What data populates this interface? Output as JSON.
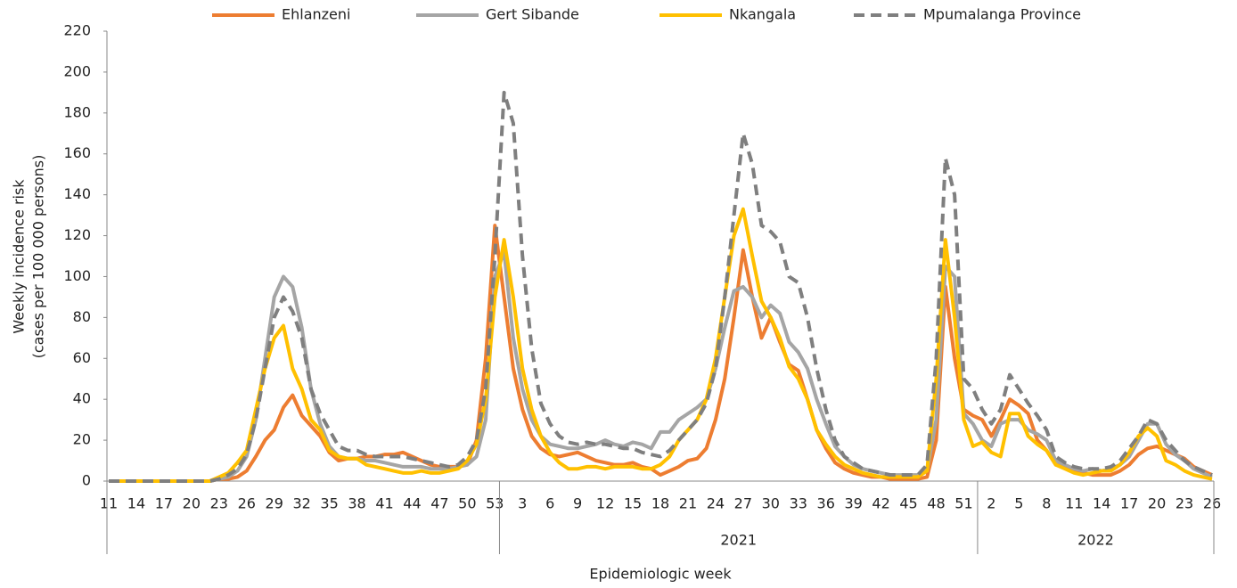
{
  "chart_data": {
    "type": "line",
    "y_title": [
      "Weekly incidence risk",
      "(cases per 100 000 persons)"
    ],
    "x_title": "Epidemiologic week",
    "ylim": [
      0,
      220
    ],
    "yticks": [
      0,
      20,
      40,
      60,
      80,
      100,
      120,
      140,
      160,
      180,
      200,
      220
    ],
    "legend": "top",
    "categories": [
      "11",
      null,
      null,
      "14",
      null,
      null,
      "17",
      null,
      null,
      "20",
      null,
      null,
      "23",
      null,
      null,
      "26",
      null,
      null,
      "29",
      null,
      null,
      "32",
      null,
      null,
      "35",
      null,
      null,
      "38",
      null,
      null,
      "41",
      null,
      null,
      "44",
      null,
      null,
      "47",
      null,
      null,
      "50",
      null,
      null,
      "53",
      null,
      null,
      "3",
      null,
      null,
      "6",
      null,
      null,
      "9",
      null,
      null,
      "12",
      null,
      null,
      "15",
      null,
      null,
      "18",
      null,
      null,
      "21",
      null,
      null,
      "24",
      null,
      null,
      "27",
      null,
      null,
      "30",
      null,
      null,
      "33",
      null,
      null,
      "36",
      null,
      null,
      "39",
      null,
      null,
      "42",
      null,
      null,
      "45",
      null,
      null,
      "48",
      null,
      null,
      "51",
      null,
      null,
      "2",
      null,
      null,
      "5",
      null,
      null,
      "8",
      null,
      null,
      "11",
      null,
      null,
      "14",
      null,
      null,
      "17",
      null,
      null,
      "20",
      null,
      null,
      "23",
      null,
      null,
      "26"
    ],
    "groups": [
      {
        "label": null,
        "size": 43
      },
      {
        "label": "2021",
        "size": 52
      },
      {
        "label": "2022",
        "size": 26
      }
    ],
    "series": [
      {
        "name": "Ehlanzeni",
        "color": "#ed7d31",
        "dashed": false,
        "values": [
          0,
          0,
          0,
          0,
          0,
          0,
          0,
          0,
          0,
          0,
          0,
          0,
          1,
          1,
          2,
          5,
          12,
          20,
          25,
          36,
          42,
          32,
          27,
          22,
          14,
          10,
          11,
          11,
          12,
          12,
          13,
          13,
          14,
          12,
          10,
          8,
          7,
          7,
          7,
          8,
          20,
          60,
          125,
          90,
          55,
          35,
          22,
          16,
          13,
          12,
          13,
          14,
          12,
          10,
          9,
          8,
          8,
          9,
          7,
          6,
          3,
          5,
          7,
          10,
          11,
          16,
          30,
          50,
          80,
          113,
          90,
          70,
          80,
          68,
          57,
          54,
          40,
          25,
          16,
          9,
          6,
          4,
          3,
          2,
          2,
          1,
          1,
          1,
          1,
          2,
          20,
          95,
          60,
          35,
          32,
          30,
          22,
          30,
          40,
          37,
          33,
          20,
          15,
          8,
          7,
          5,
          4,
          3,
          3,
          3,
          5,
          8,
          13,
          16,
          17,
          15,
          13,
          11,
          7,
          5,
          3
        ]
      },
      {
        "name": "Gert Sibande",
        "color": "#a5a5a5",
        "dashed": false,
        "values": [
          0,
          0,
          0,
          0,
          0,
          0,
          0,
          0,
          0,
          0,
          0,
          0,
          1,
          2,
          5,
          12,
          30,
          60,
          90,
          100,
          95,
          75,
          45,
          28,
          17,
          12,
          11,
          11,
          10,
          10,
          9,
          8,
          7,
          7,
          7,
          6,
          6,
          6,
          7,
          8,
          12,
          30,
          100,
          112,
          70,
          45,
          30,
          22,
          18,
          17,
          16,
          16,
          17,
          18,
          20,
          18,
          17,
          19,
          18,
          16,
          24,
          24,
          30,
          33,
          36,
          40,
          55,
          75,
          93,
          95,
          90,
          80,
          86,
          82,
          68,
          63,
          55,
          40,
          28,
          17,
          12,
          8,
          6,
          5,
          4,
          3,
          3,
          3,
          3,
          5,
          30,
          105,
          100,
          33,
          28,
          20,
          17,
          28,
          30,
          30,
          25,
          23,
          20,
          10,
          8,
          6,
          5,
          6,
          5,
          6,
          8,
          12,
          20,
          28,
          28,
          18,
          13,
          10,
          6,
          4,
          2
        ]
      },
      {
        "name": "Nkangala",
        "color": "#ffc000",
        "dashed": false,
        "values": [
          0,
          0,
          0,
          0,
          0,
          0,
          0,
          0,
          0,
          0,
          0,
          0,
          2,
          4,
          9,
          15,
          35,
          55,
          70,
          76,
          55,
          45,
          30,
          25,
          15,
          12,
          11,
          11,
          8,
          7,
          6,
          5,
          4,
          4,
          5,
          4,
          4,
          5,
          6,
          10,
          18,
          40,
          90,
          118,
          90,
          55,
          35,
          22,
          14,
          9,
          6,
          6,
          7,
          7,
          6,
          7,
          7,
          7,
          6,
          6,
          8,
          12,
          20,
          25,
          30,
          40,
          60,
          90,
          120,
          133,
          110,
          88,
          80,
          70,
          56,
          50,
          40,
          25,
          18,
          12,
          8,
          6,
          4,
          3,
          2,
          2,
          2,
          2,
          2,
          5,
          50,
          118,
          80,
          30,
          17,
          19,
          14,
          12,
          33,
          33,
          22,
          18,
          15,
          8,
          6,
          4,
          3,
          4,
          5,
          5,
          8,
          14,
          22,
          26,
          22,
          10,
          8,
          5,
          3,
          2,
          1
        ]
      },
      {
        "name": "Mpumalanga Province",
        "color": "#7f7f7f",
        "dashed": true,
        "values": [
          0,
          0,
          0,
          0,
          0,
          0,
          0,
          0,
          0,
          0,
          0,
          0,
          1,
          3,
          6,
          13,
          30,
          55,
          80,
          90,
          83,
          70,
          45,
          33,
          25,
          17,
          15,
          15,
          13,
          12,
          12,
          12,
          12,
          11,
          10,
          9,
          8,
          7,
          8,
          12,
          20,
          45,
          110,
          190,
          175,
          110,
          65,
          38,
          28,
          22,
          19,
          18,
          19,
          18,
          18,
          17,
          16,
          16,
          14,
          13,
          12,
          15,
          20,
          25,
          30,
          38,
          55,
          90,
          130,
          170,
          155,
          125,
          122,
          117,
          100,
          97,
          80,
          55,
          35,
          20,
          12,
          9,
          6,
          5,
          4,
          3,
          3,
          3,
          3,
          8,
          60,
          158,
          140,
          50,
          45,
          35,
          28,
          35,
          52,
          45,
          38,
          32,
          25,
          12,
          9,
          7,
          6,
          6,
          6,
          7,
          10,
          16,
          22,
          30,
          28,
          20,
          15,
          10,
          7,
          5,
          3
        ]
      }
    ]
  }
}
